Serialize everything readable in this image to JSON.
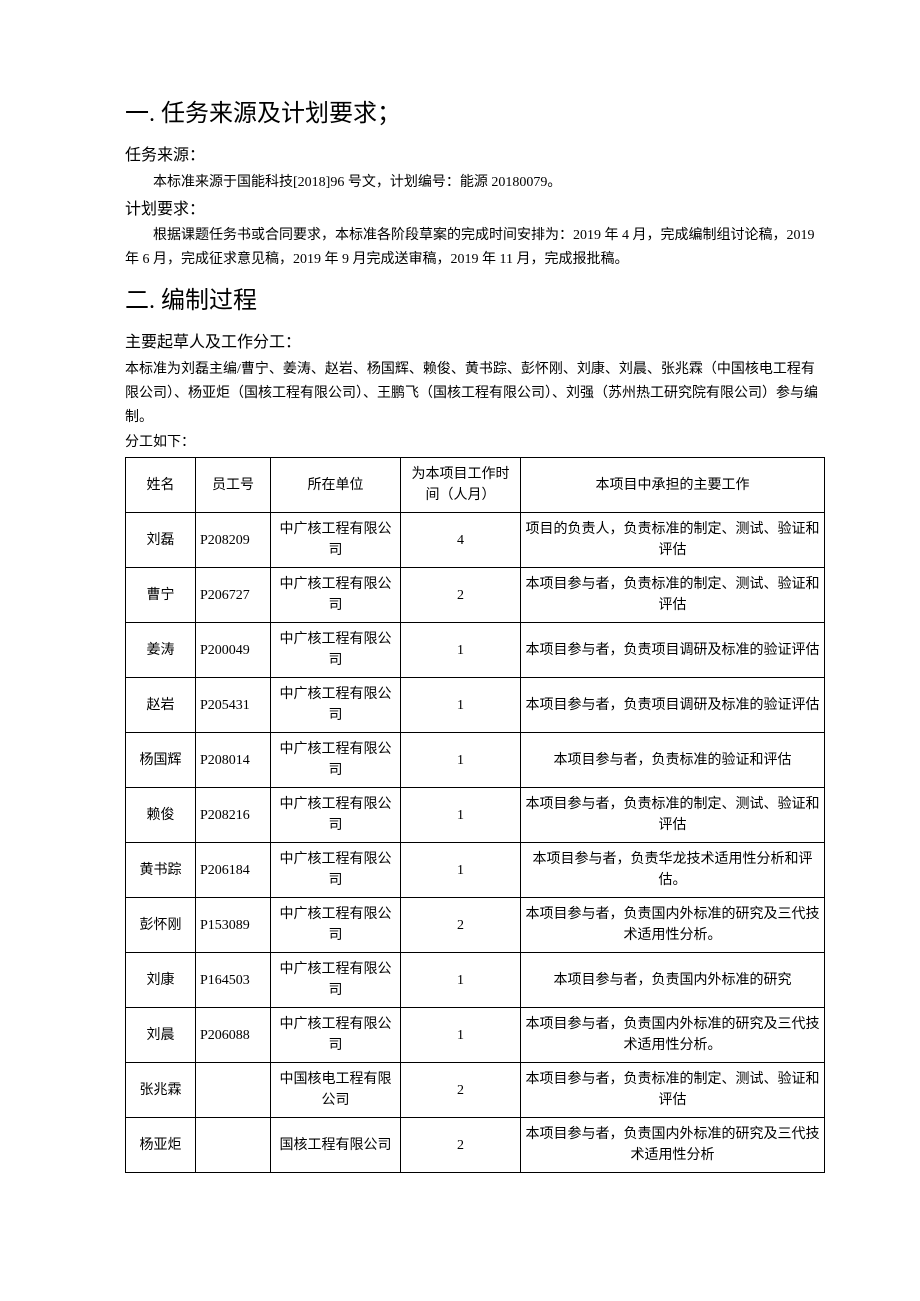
{
  "section1": {
    "heading": "一. 任务来源及计划要求；",
    "sub1": "任务来源：",
    "para1": "本标准来源于国能科技[2018]96 号文，计划编号：能源 20180079。",
    "sub2": "计划要求：",
    "para2": "根据课题任务书或合同要求，本标准各阶段草案的完成时间安排为：2019 年 4 月，完成编制组讨论稿，2019 年 6 月，完成征求意见稿，2019 年 9 月完成送审稿，2019 年 11 月，完成报批稿。"
  },
  "section2": {
    "heading": "二. 编制过程",
    "sub1": "主要起草人及工作分工：",
    "para1": "本标准为刘磊主编/曹宁、姜涛、赵岩、杨国辉、赖俊、黄书踪、彭怀刚、刘康、刘晨、张兆霖（中国核电工程有限公司）、杨亚炬（国核工程有限公司）、王鹏飞（国核工程有限公司）、刘强（苏州热工研究院有限公司）参与编制。",
    "para2": "分工如下："
  },
  "table": {
    "columns": [
      "姓名",
      "员工号",
      "所在单位",
      "为本项目工作时间（人月）",
      "本项目中承担的主要工作"
    ],
    "rows": [
      [
        "刘磊",
        "P208209",
        "中广核工程有限公司",
        "4",
        "项目的负责人，负责标准的制定、测试、验证和评估"
      ],
      [
        "曹宁",
        "P206727",
        "中广核工程有限公司",
        "2",
        "本项目参与者，负责标准的制定、测试、验证和评估"
      ],
      [
        "姜涛",
        "P200049",
        "中广核工程有限公司",
        "1",
        "本项目参与者，负责项目调研及标准的验证评估"
      ],
      [
        "赵岩",
        "P205431",
        "中广核工程有限公司",
        "1",
        "本项目参与者，负责项目调研及标准的验证评估"
      ],
      [
        "杨国辉",
        "P208014",
        "中广核工程有限公司",
        "1",
        "本项目参与者，负责标准的验证和评估"
      ],
      [
        "赖俊",
        "P208216",
        "中广核工程有限公司",
        "1",
        "本项目参与者，负责标准的制定、测试、验证和评估"
      ],
      [
        "黄书踪",
        "P206184",
        "中广核工程有限公司",
        "1",
        "本项目参与者，负责华龙技术适用性分析和评估。"
      ],
      [
        "彭怀刚",
        "P153089",
        "中广核工程有限公司",
        "2",
        "本项目参与者，负责国内外标准的研究及三代技术适用性分析。"
      ],
      [
        "刘康",
        "P164503",
        "中广核工程有限公司",
        "1",
        "本项目参与者，负责国内外标准的研究"
      ],
      [
        "刘晨",
        "P206088",
        "中广核工程有限公司",
        "1",
        "本项目参与者，负责国内外标准的研究及三代技术适用性分析。"
      ],
      [
        "张兆霖",
        "",
        "中国核电工程有限公司",
        "2",
        "本项目参与者，负责标准的制定、测试、验证和评估"
      ],
      [
        "杨亚炬",
        "",
        "国核工程有限公司",
        "2",
        "本项目参与者，负责国内外标准的研究及三代技术适用性分析"
      ]
    ]
  },
  "styling": {
    "background_color": "#ffffff",
    "text_color": "#000000",
    "border_color": "#000000",
    "h1_fontsize": 24,
    "subhead_fontsize": 16,
    "body_fontsize": 14,
    "font_family": "SimSun"
  }
}
